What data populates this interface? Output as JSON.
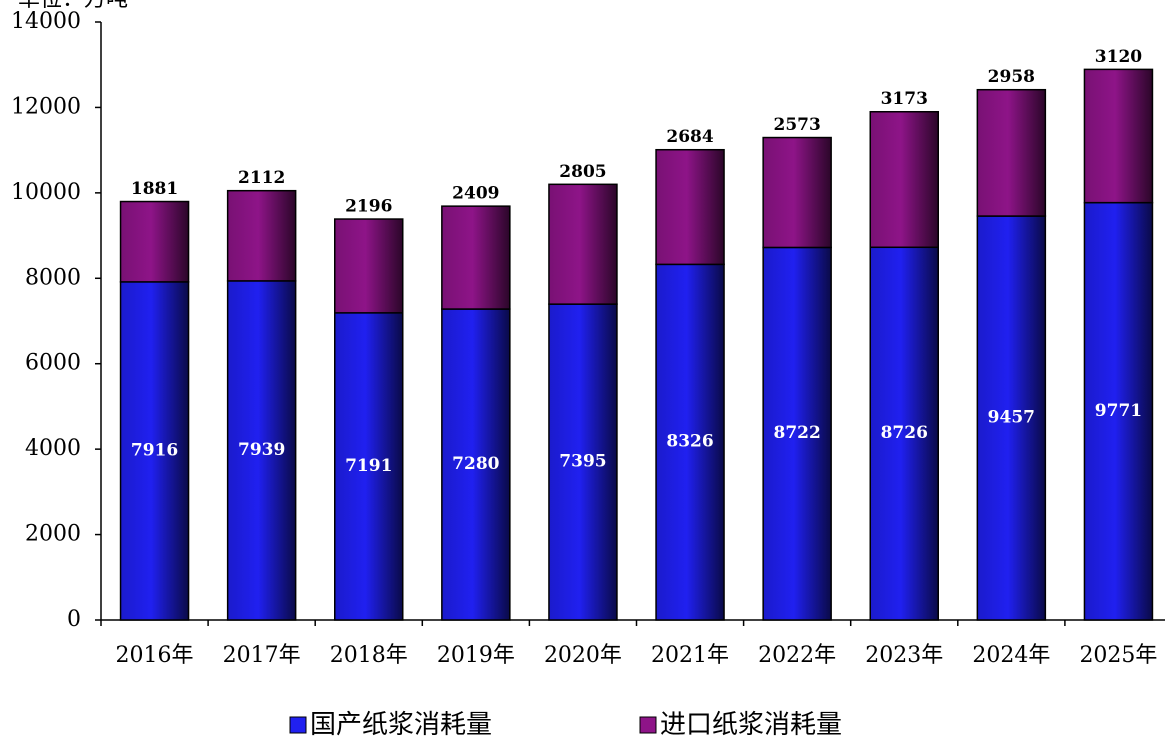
{
  "chart_data": {
    "type": "stacked_bar",
    "y_label": "单位：万吨",
    "categories": [
      "2016年",
      "2017年",
      "2018年",
      "2019年",
      "2020年",
      "2021年",
      "2022年",
      "2023年",
      "2024年",
      "2025年"
    ],
    "series": [
      {
        "name": "国产纸浆消耗量",
        "color": "#2020f0",
        "values": [
          7916,
          7939,
          7191,
          7280,
          7395,
          8326,
          8722,
          8726,
          9457,
          9771
        ]
      },
      {
        "name": "进口纸浆消耗量",
        "color": "#8e1488",
        "values": [
          1881,
          2112,
          2196,
          2409,
          2805,
          2684,
          2573,
          3173,
          2958,
          3120
        ]
      }
    ],
    "ylim": [
      0,
      14000
    ],
    "yticks": [
      0,
      2000,
      4000,
      6000,
      8000,
      10000,
      12000,
      14000
    ],
    "legend": "bottom"
  }
}
